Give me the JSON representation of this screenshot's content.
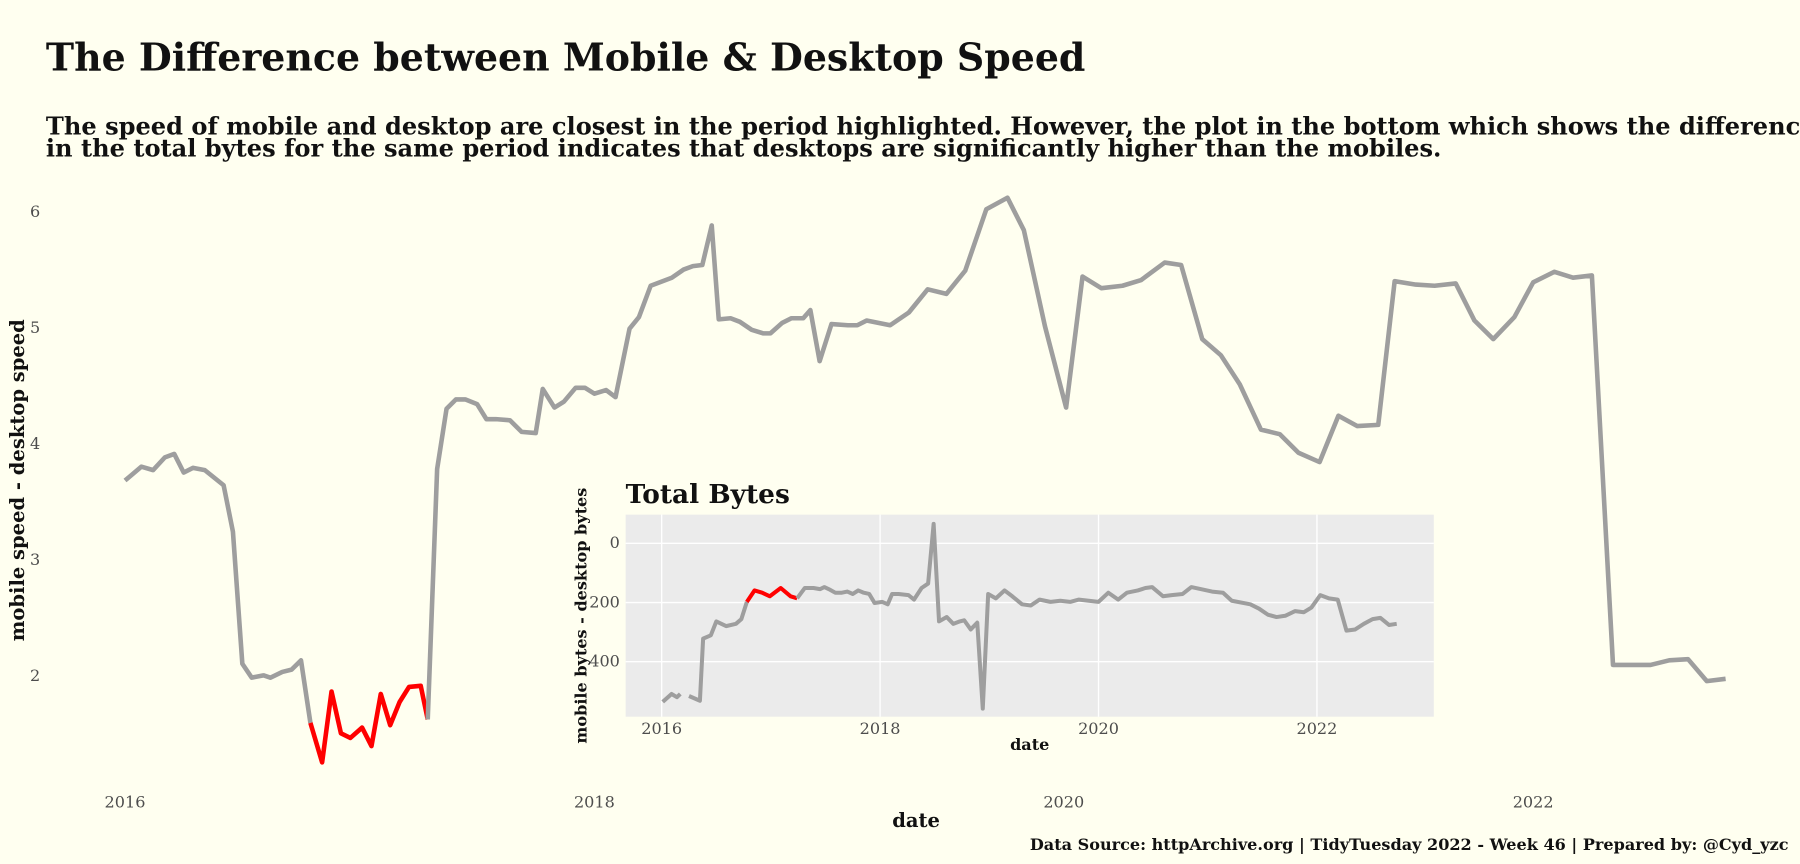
{
  "chart_data": [
    {
      "type": "line",
      "title": "The Difference between Mobile & Desktop Speed",
      "subtitle": [
        "The speed of mobile and desktop are closest in the period highlighted. However, the plot in the bottom which shows the difference",
        "in the total bytes for the same period indicates that desktops are significantly higher than the mobiles."
      ],
      "caption": "Data Source: httpArchive.org | TidyTuesday 2022 - Week 46 | Prepared by: @Cyd_yzc",
      "x_label": "date",
      "y_label": "mobile speed - desktop speed",
      "xlim": [
        2015.8,
        2023.0
      ],
      "ylim": [
        1.1,
        6.2
      ],
      "xticks": [
        2016,
        2018,
        2020,
        2022
      ],
      "yticks": [
        2,
        3,
        4,
        5,
        6
      ],
      "series": [
        {
          "color": "#9e9e9e",
          "x": [
            2016.0,
            2016.07,
            2016.12,
            2016.17,
            2016.21,
            2016.25,
            2016.29,
            2016.34,
            2016.42,
            2016.46,
            2016.5,
            2016.54,
            2016.59,
            2016.62,
            2016.67,
            2016.71,
            2016.75,
            2016.79
          ],
          "values": [
            3.68,
            3.8,
            3.77,
            3.88,
            3.91,
            3.75,
            3.79,
            3.77,
            3.64,
            3.24,
            2.1,
            1.98,
            2.0,
            1.98,
            2.03,
            2.05,
            2.13,
            1.59
          ]
        },
        {
          "color": "#ff0000",
          "x": [
            2016.79,
            2016.84,
            2016.88,
            2016.92,
            2016.96,
            2017.01,
            2017.05,
            2017.09,
            2017.13,
            2017.17,
            2017.21,
            2017.26,
            2017.29
          ],
          "values": [
            1.59,
            1.25,
            1.86,
            1.5,
            1.46,
            1.55,
            1.39,
            1.84,
            1.57,
            1.77,
            1.9,
            1.91,
            1.62
          ]
        },
        {
          "color": "#9e9e9e",
          "x": [
            2017.29,
            2017.33,
            2017.37,
            2017.41,
            2017.45,
            2017.5,
            2017.54,
            2017.58,
            2017.64,
            2017.69,
            2017.75,
            2017.78,
            2017.83,
            2017.87,
            2017.92,
            2017.96,
            2018.0,
            2018.05,
            2018.09,
            2018.15,
            2018.19,
            2018.24,
            2018.33,
            2018.38,
            2018.42,
            2018.46,
            2018.5,
            2018.53,
            2018.58,
            2018.62,
            2018.67,
            2018.72,
            2018.75,
            2018.8,
            2018.84,
            2018.89,
            2018.92,
            2018.96,
            2019.01,
            2019.08,
            2019.12,
            2019.16,
            2019.26,
            2019.34,
            2019.42,
            2019.5,
            2019.58,
            2019.67,
            2019.76,
            2019.83,
            2019.92,
            2020.01,
            2020.08,
            2020.16,
            2020.25,
            2020.33,
            2020.43,
            2020.5,
            2020.59,
            2020.67,
            2020.75,
            2020.84,
            2020.92,
            2021.0,
            2021.09,
            2021.17,
            2021.25,
            2021.34,
            2021.41,
            2021.5,
            2021.58,
            2021.67,
            2021.75,
            2021.83,
            2021.92,
            2022.0,
            2022.09,
            2022.17,
            2022.25,
            2022.34,
            2022.42,
            2022.5,
            2022.58,
            2022.66,
            2022.74,
            2022.82
          ],
          "values": [
            1.62,
            3.78,
            4.3,
            4.38,
            4.38,
            4.34,
            4.21,
            4.21,
            4.2,
            4.1,
            4.09,
            4.47,
            4.31,
            4.36,
            4.48,
            4.48,
            4.43,
            4.46,
            4.4,
            4.99,
            5.09,
            5.36,
            5.43,
            5.5,
            5.53,
            5.54,
            5.88,
            5.07,
            5.08,
            5.05,
            4.98,
            4.95,
            4.95,
            5.04,
            5.08,
            5.08,
            5.15,
            4.71,
            5.03,
            5.02,
            5.02,
            5.06,
            5.02,
            5.13,
            5.33,
            5.29,
            5.49,
            6.02,
            6.12,
            5.84,
            5.01,
            4.31,
            5.44,
            5.34,
            5.36,
            5.41,
            5.56,
            5.54,
            4.9,
            4.76,
            4.51,
            4.12,
            4.08,
            3.92,
            3.84,
            4.24,
            4.15,
            4.16,
            5.4,
            5.37,
            5.36,
            5.38,
            5.06,
            4.9,
            5.09,
            5.39,
            5.48,
            5.43,
            5.45,
            2.09,
            2.09,
            2.09,
            2.13,
            2.14,
            1.95,
            1.97
          ]
        }
      ]
    },
    {
      "type": "line",
      "title": "Total Bytes",
      "x_label": "date",
      "y_label": "mobile bytes - desktop bytes",
      "xlim": [
        2015.67,
        2023.07
      ],
      "ylim": [
        -97,
        586
      ],
      "y_reversed": true,
      "grid": true,
      "xticks": [
        2016,
        2018,
        2020,
        2022
      ],
      "yticks": [
        0,
        200,
        400
      ],
      "series": [
        {
          "color": "#9e9e9e",
          "x": [
            2016.01,
            2016.09,
            2016.14,
            2016.17
          ],
          "values": [
            536,
            509,
            520,
            509
          ]
        },
        {
          "color": "#9e9e9e",
          "x": [
            2016.25,
            2016.35,
            2016.38,
            2016.45,
            2016.5,
            2016.59,
            2016.68,
            2016.73,
            2016.78
          ],
          "values": [
            516,
            532,
            322,
            311,
            264,
            280,
            272,
            256,
            198
          ]
        },
        {
          "color": "#ff0000",
          "x": [
            2016.78,
            2016.85,
            2016.92,
            2016.99,
            2017.09,
            2017.18,
            2017.24
          ],
          "values": [
            198,
            159,
            167,
            179,
            151,
            179,
            186
          ]
        },
        {
          "color": "#9e9e9e",
          "x": [
            2017.24,
            2017.31,
            2017.39,
            2017.45,
            2017.49,
            2017.53,
            2017.59,
            2017.65,
            2017.7,
            2017.75,
            2017.8,
            2017.85,
            2017.9,
            2017.95,
            2018.02,
            2018.07,
            2018.11,
            2018.17,
            2018.26,
            2018.31,
            2018.38,
            2018.44,
            2018.49,
            2018.54,
            2018.61,
            2018.67,
            2018.73,
            2018.77,
            2018.83,
            2018.89,
            2018.94,
            2018.99,
            2019.06,
            2019.14,
            2019.21,
            2019.3,
            2019.38,
            2019.46,
            2019.56,
            2019.65,
            2019.74,
            2019.82,
            2019.91,
            2020.0,
            2020.09,
            2020.18,
            2020.26,
            2020.36,
            2020.43,
            2020.49,
            2020.59,
            2020.67,
            2020.77,
            2020.85,
            2020.94,
            2021.04,
            2021.14,
            2021.22,
            2021.39,
            2021.47,
            2021.55,
            2021.63,
            2021.71,
            2021.8,
            2021.88,
            2021.95,
            2022.03,
            2022.11,
            2022.19,
            2022.27,
            2022.35,
            2022.43,
            2022.51,
            2022.58,
            2022.66,
            2022.73
          ],
          "values": [
            186,
            151,
            151,
            155,
            148,
            155,
            167,
            167,
            163,
            171,
            159,
            167,
            171,
            202,
            198,
            206,
            171,
            171,
            175,
            190,
            151,
            136,
            -66,
            264,
            249,
            272,
            264,
            260,
            291,
            268,
            559,
            171,
            186,
            159,
            179,
            206,
            210,
            190,
            198,
            194,
            198,
            190,
            194,
            198,
            167,
            190,
            167,
            159,
            151,
            148,
            179,
            175,
            171,
            148,
            155,
            163,
            167,
            194,
            206,
            221,
            241,
            249,
            245,
            229,
            233,
            217,
            175,
            186,
            190,
            295,
            291,
            272,
            256,
            252,
            276,
            272
          ]
        }
      ]
    }
  ]
}
